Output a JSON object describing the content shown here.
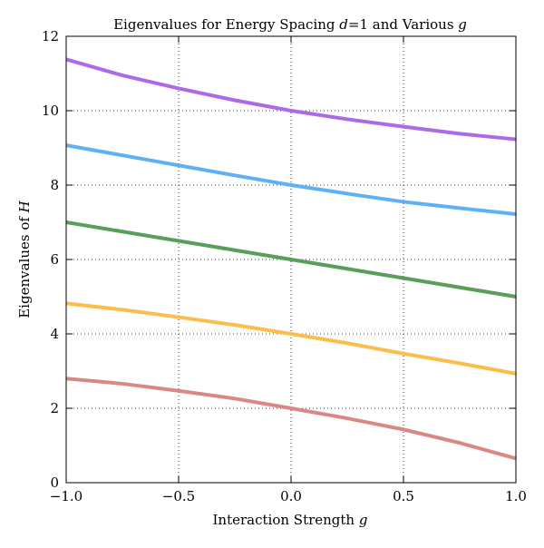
{
  "chart_data": {
    "type": "line",
    "title": {
      "prefix": "Eigenvalues for Energy Spacing ",
      "d_var": "d",
      "d_eq": "=",
      "d_val": "1",
      "middle": " and Various ",
      "g_var": "g"
    },
    "xlabel": {
      "prefix": "Interaction Strength ",
      "var": "g"
    },
    "ylabel": {
      "prefix": "Eigenvalues of ",
      "var": "H"
    },
    "xlim": [
      -1.0,
      1.0
    ],
    "ylim": [
      0,
      12
    ],
    "grid": true,
    "legend": "none",
    "x_ticks": [
      -1.0,
      -0.5,
      0.0,
      0.5,
      1.0
    ],
    "x_tick_labels": [
      "−1.0",
      "−0.5",
      "0.0",
      "0.5",
      "1.0"
    ],
    "y_ticks": [
      0,
      2,
      4,
      6,
      8,
      10,
      12
    ],
    "y_tick_labels": [
      "0",
      "2",
      "4",
      "6",
      "8",
      "10",
      "12"
    ],
    "x": [
      -1.0,
      -0.75,
      -0.5,
      -0.25,
      0.0,
      0.25,
      0.5,
      0.75,
      1.0
    ],
    "series": [
      {
        "color": "#d98886",
        "values": [
          2.8,
          2.66,
          2.47,
          2.26,
          2.0,
          1.73,
          1.43,
          1.07,
          0.65
        ]
      },
      {
        "color": "#fbbd4c",
        "values": [
          4.82,
          4.65,
          4.45,
          4.24,
          4.0,
          3.75,
          3.47,
          3.21,
          2.93
        ]
      },
      {
        "color": "#5a9e5a",
        "values": [
          7.0,
          6.75,
          6.5,
          6.25,
          6.0,
          5.75,
          5.5,
          5.25,
          5.0
        ]
      },
      {
        "color": "#5fb0f5",
        "values": [
          9.07,
          8.8,
          8.53,
          8.26,
          8.0,
          7.77,
          7.55,
          7.38,
          7.22
        ]
      },
      {
        "color": "#ac6ae8",
        "values": [
          11.38,
          10.95,
          10.6,
          10.28,
          10.0,
          9.77,
          9.57,
          9.38,
          9.23
        ]
      }
    ]
  }
}
